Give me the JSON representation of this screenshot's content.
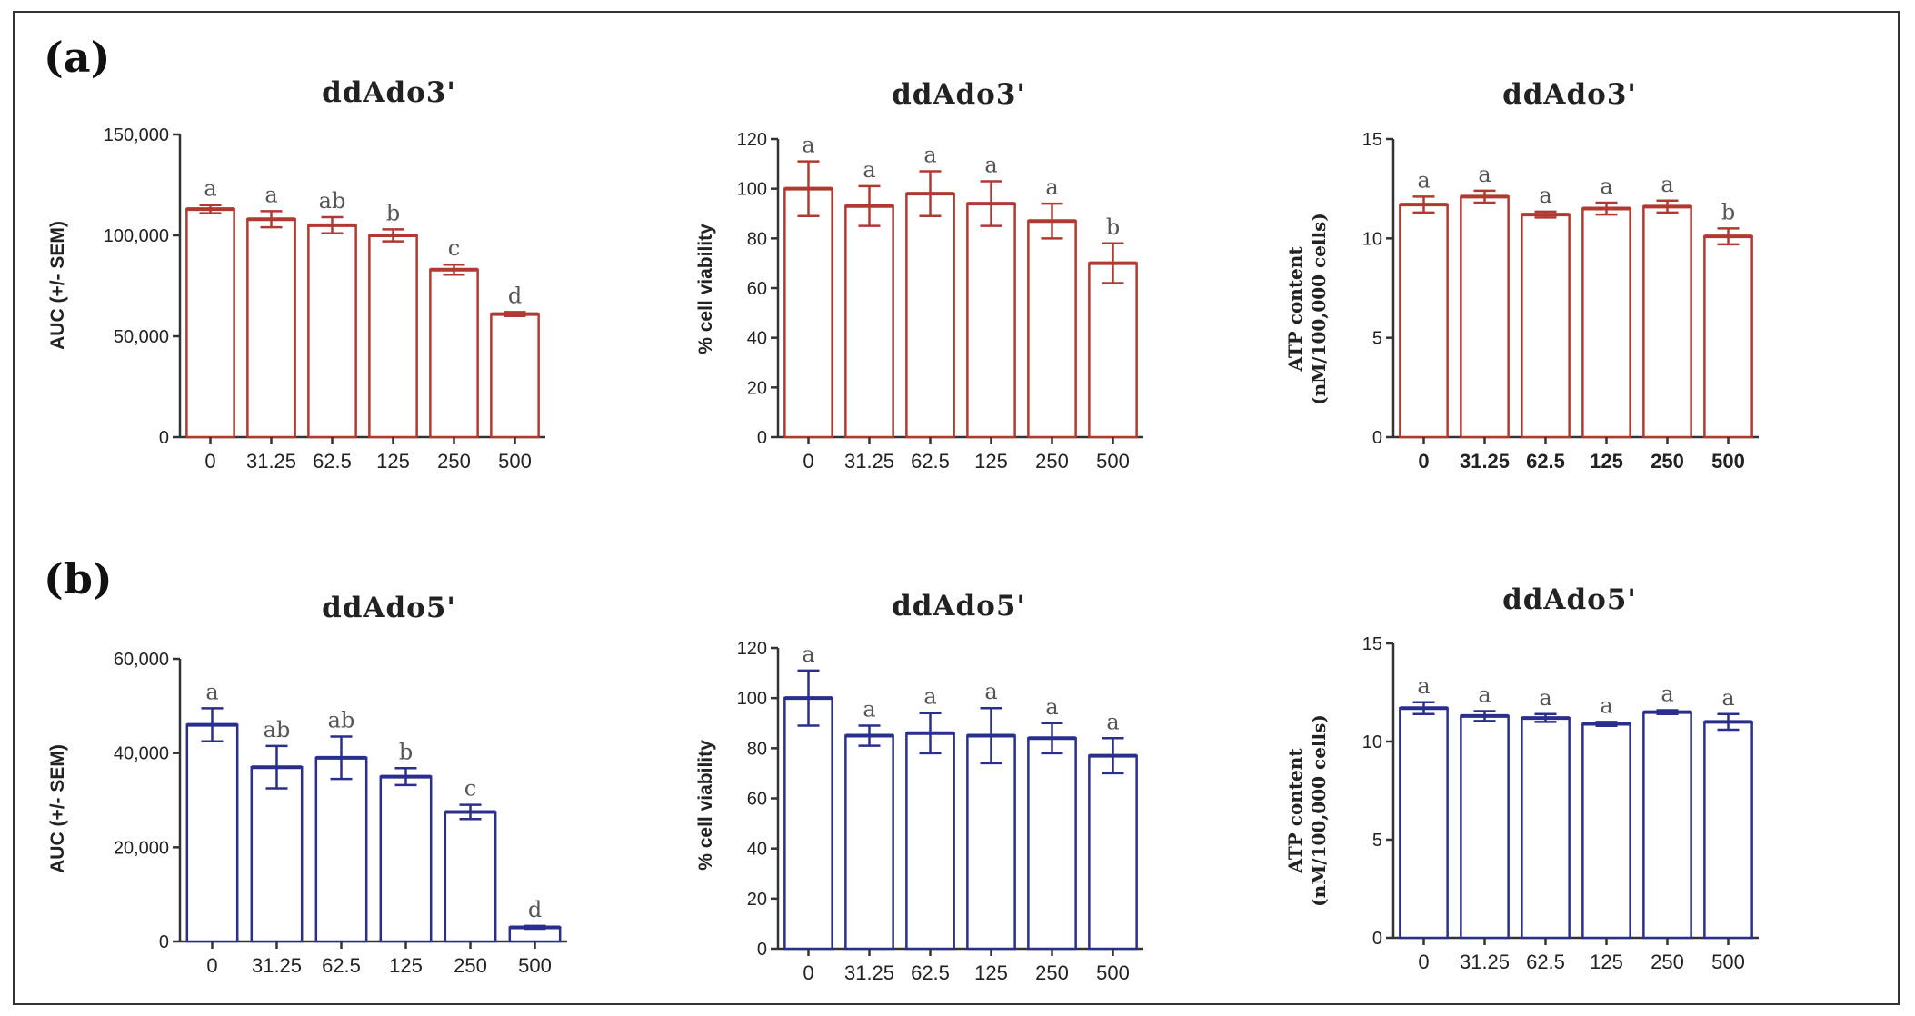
{
  "panel_labels": {
    "a": "(a)",
    "b": "(b)"
  },
  "colors": {
    "row_a": "#b03a32",
    "row_b": "#2b2f8c",
    "axis": "#333333"
  },
  "chart_data": [
    {
      "type": "bar",
      "title": "ddAdo3'",
      "xlabel": "",
      "ylabel": "AUC (+/- SEM)",
      "ylabel_lines": [
        "AUC (+/- SEM)"
      ],
      "ylabel_style": "sans",
      "categories": [
        "0",
        "31.25",
        "62.5",
        "125",
        "250",
        "500"
      ],
      "values": [
        113000,
        108000,
        105000,
        100000,
        83000,
        61000
      ],
      "errors": [
        2000,
        4000,
        4000,
        3000,
        2500,
        1000
      ],
      "sig": [
        "a",
        "a",
        "ab",
        "b",
        "c",
        "d"
      ],
      "ylim": [
        0,
        150000
      ],
      "yticks": [
        0,
        50000,
        100000,
        150000
      ],
      "ytick_labels": [
        "0",
        "50,000",
        "100,000",
        "150,000"
      ],
      "x_bold": false,
      "row": "a"
    },
    {
      "type": "bar",
      "title": "ddAdo3'",
      "xlabel": "",
      "ylabel": "% cell viability",
      "ylabel_lines": [
        "% cell viability"
      ],
      "ylabel_style": "sans",
      "categories": [
        "0",
        "31.25",
        "62.5",
        "125",
        "250",
        "500"
      ],
      "values": [
        100,
        93,
        98,
        94,
        87,
        70
      ],
      "errors": [
        11,
        8,
        9,
        9,
        7,
        8
      ],
      "sig": [
        "a",
        "a",
        "a",
        "a",
        "a",
        "b"
      ],
      "ylim": [
        0,
        120
      ],
      "yticks": [
        0,
        20,
        40,
        60,
        80,
        100,
        120
      ],
      "ytick_labels": [
        "0",
        "20",
        "40",
        "60",
        "80",
        "100",
        "120"
      ],
      "x_bold": false,
      "row": "a"
    },
    {
      "type": "bar",
      "title": "ddAdo3'",
      "xlabel": "",
      "ylabel": "ATP content (nM/100,000 cells)",
      "ylabel_lines": [
        "ATP content",
        "(nM/100,000 cells)"
      ],
      "ylabel_style": "serif",
      "categories": [
        "0",
        "31.25",
        "62.5",
        "125",
        "250",
        "500"
      ],
      "values": [
        11.7,
        12.1,
        11.2,
        11.5,
        11.6,
        10.1
      ],
      "errors": [
        0.4,
        0.3,
        0.15,
        0.3,
        0.3,
        0.4
      ],
      "sig": [
        "a",
        "a",
        "a",
        "a",
        "a",
        "b"
      ],
      "ylim": [
        0,
        15
      ],
      "yticks": [
        0,
        5,
        10,
        15
      ],
      "ytick_labels": [
        "0",
        "5",
        "10",
        "15"
      ],
      "x_bold": true,
      "row": "a"
    },
    {
      "type": "bar",
      "title": "ddAdo5'",
      "xlabel": "",
      "ylabel": "AUC (+/- SEM)",
      "ylabel_lines": [
        "AUC (+/- SEM)"
      ],
      "ylabel_style": "sans",
      "categories": [
        "0",
        "31.25",
        "62.5",
        "125",
        "250",
        "500"
      ],
      "values": [
        46000,
        37000,
        39000,
        35000,
        27500,
        3000
      ],
      "errors": [
        3500,
        4500,
        4500,
        1800,
        1500,
        300
      ],
      "sig": [
        "a",
        "ab",
        "ab",
        "b",
        "c",
        "d"
      ],
      "ylim": [
        0,
        60000
      ],
      "yticks": [
        0,
        20000,
        40000,
        60000
      ],
      "ytick_labels": [
        "0",
        "20,000",
        "40,000",
        "60,000"
      ],
      "x_bold": false,
      "row": "b"
    },
    {
      "type": "bar",
      "title": "ddAdo5'",
      "xlabel": "",
      "ylabel": "% cell viability",
      "ylabel_lines": [
        "% cell viability"
      ],
      "ylabel_style": "sans",
      "categories": [
        "0",
        "31.25",
        "62.5",
        "125",
        "250",
        "500"
      ],
      "values": [
        100,
        85,
        86,
        85,
        84,
        77
      ],
      "errors": [
        11,
        4,
        8,
        11,
        6,
        7
      ],
      "sig": [
        "a",
        "a",
        "a",
        "a",
        "a",
        "a"
      ],
      "ylim": [
        0,
        120
      ],
      "yticks": [
        0,
        20,
        40,
        60,
        80,
        100,
        120
      ],
      "ytick_labels": [
        "0",
        "20",
        "40",
        "60",
        "80",
        "100",
        "120"
      ],
      "x_bold": false,
      "row": "b"
    },
    {
      "type": "bar",
      "title": "ddAdo5'",
      "xlabel": "",
      "ylabel": "ATP content (nM/100,000 cells)",
      "ylabel_lines": [
        "ATP content",
        "(nM/100,000 cells)"
      ],
      "ylabel_style": "serif",
      "categories": [
        "0",
        "31.25",
        "62.5",
        "125",
        "250",
        "500"
      ],
      "values": [
        11.7,
        11.3,
        11.2,
        10.9,
        11.5,
        11.0
      ],
      "errors": [
        0.3,
        0.25,
        0.2,
        0.1,
        0.1,
        0.4
      ],
      "sig": [
        "a",
        "a",
        "a",
        "a",
        "a",
        "a"
      ],
      "ylim": [
        0,
        15
      ],
      "yticks": [
        0,
        5,
        10,
        15
      ],
      "ytick_labels": [
        "0",
        "5",
        "10",
        "15"
      ],
      "x_bold": false,
      "row": "b"
    }
  ]
}
